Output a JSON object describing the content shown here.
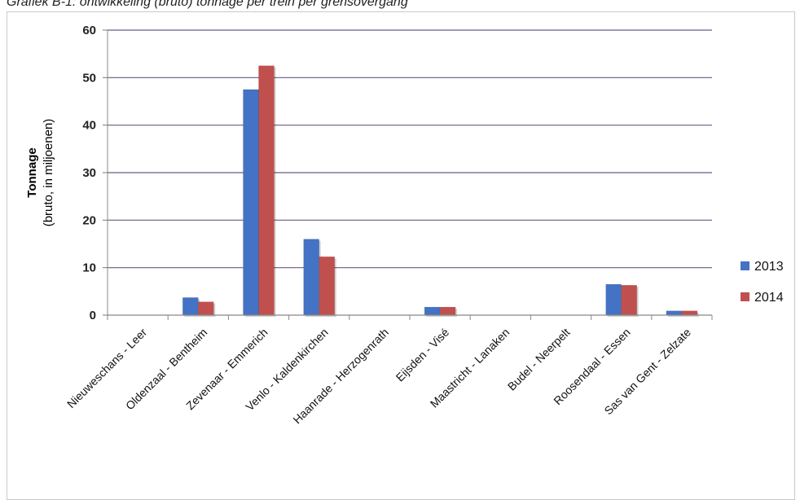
{
  "page": {
    "caption": "Grafiek B-1: ontwikkeling (bruto) tonnage per trein per grensovergang"
  },
  "chart_data": {
    "type": "bar",
    "title": "",
    "ylabel": "Tonnage",
    "ylabel_sub": "(bruto, in miljoenen)",
    "xlabel": "",
    "ylim": [
      0,
      60
    ],
    "yticks": [
      0,
      10,
      20,
      30,
      40,
      50,
      60
    ],
    "grid": true,
    "legend_position": "right",
    "categories": [
      "Nieuweschans - Leer",
      "Oldenzaal - Bentheim",
      "Zevenaar - Emmerich",
      "Venlo - Kaldenkirchen",
      "Haanrade - Herzogenrath",
      "Eijsden - Visé",
      "Maastricht - Lanaken",
      "Budel - Neerpelt",
      "Roosendaal - Essen",
      "Sas van Gent - Zelzate"
    ],
    "series": [
      {
        "name": "2013",
        "color": "#4472C4",
        "values": [
          0,
          3.7,
          47.5,
          16,
          0,
          1.7,
          0,
          0,
          6.5,
          0.9
        ]
      },
      {
        "name": "2014",
        "color": "#C0504D",
        "values": [
          0,
          2.8,
          52.5,
          12.3,
          0,
          1.7,
          0,
          0,
          6.3,
          0.9
        ]
      }
    ]
  }
}
